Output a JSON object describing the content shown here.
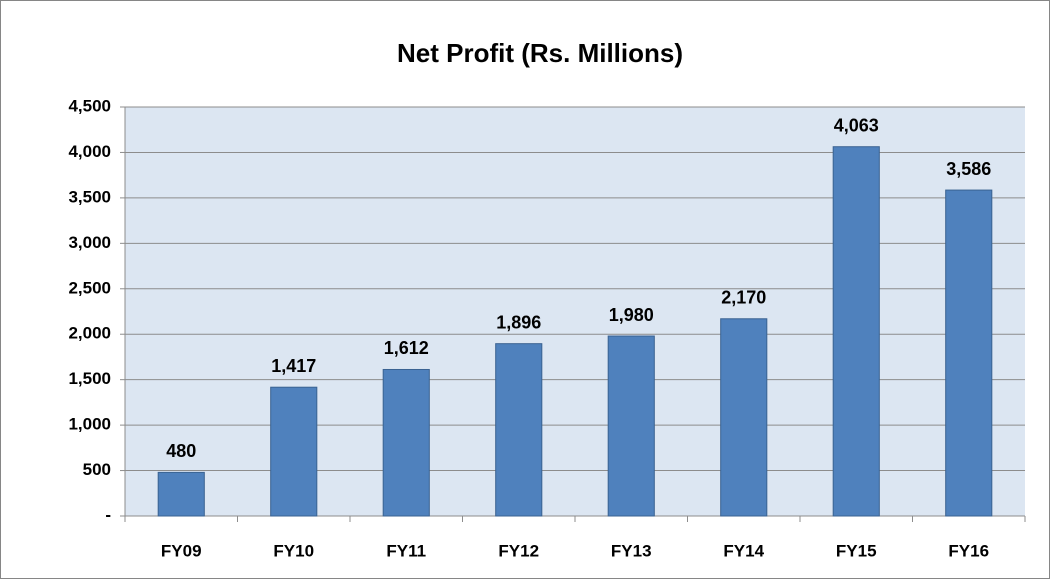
{
  "chart_data": {
    "type": "bar",
    "title": "Net Profit (Rs. Millions)",
    "categories": [
      "FY09",
      "FY10",
      "FY11",
      "FY12",
      "FY13",
      "FY14",
      "FY15",
      "FY16"
    ],
    "values": [
      480,
      1417,
      1612,
      1896,
      1980,
      2170,
      4063,
      3586
    ],
    "value_labels": [
      "480",
      "1,417",
      "1,612",
      "1,896",
      "1,980",
      "2,170",
      "4,063",
      "3,586"
    ],
    "color": "#4f81bd",
    "ylim": [
      0,
      4500
    ],
    "yticks": [
      {
        "value": 0,
        "label": "-"
      },
      500,
      {
        "value": 1000,
        "label": "1,000"
      },
      {
        "value": 1500,
        "label": "1,500"
      },
      {
        "value": 2000,
        "label": "2,000"
      },
      {
        "value": 2500,
        "label": "2,500"
      },
      {
        "value": 3000,
        "label": "3,000"
      },
      {
        "value": 3500,
        "label": "3,500"
      },
      {
        "value": 4000,
        "label": "4,000"
      },
      {
        "value": 4500,
        "label": "4,500"
      }
    ],
    "grid": true
  }
}
